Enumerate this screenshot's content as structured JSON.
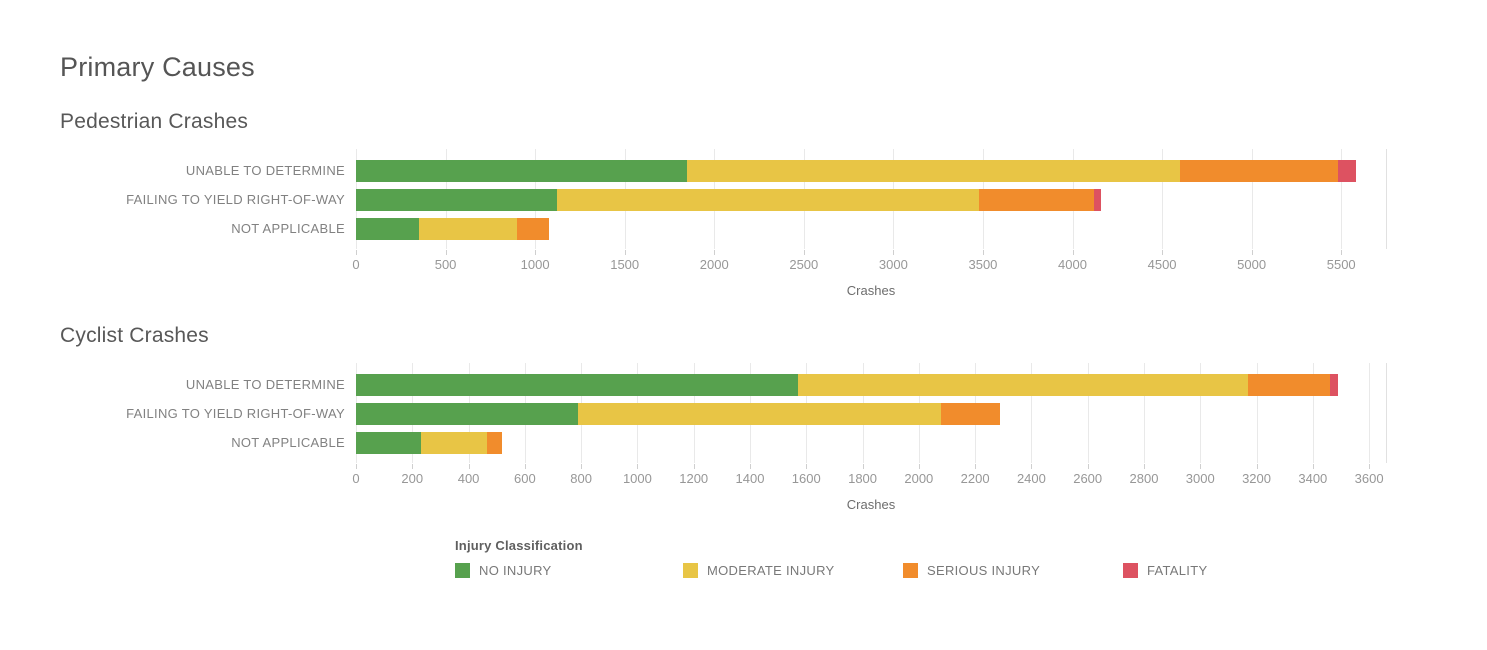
{
  "page": {
    "title": "Primary Causes"
  },
  "colors": {
    "no_injury": "#57A14E",
    "moderate_injury": "#E8C545",
    "serious_injury": "#F18C2C",
    "fatality": "#DD5261",
    "gridline": "#E9E9E9"
  },
  "legend": {
    "title": "Injury Classification",
    "items": [
      {
        "label": "NO INJURY",
        "color": "#57A14E"
      },
      {
        "label": "MODERATE INJURY",
        "color": "#E8C545"
      },
      {
        "label": "SERIOUS INJURY",
        "color": "#F18C2C"
      },
      {
        "label": "FATALITY",
        "color": "#DD5261"
      }
    ]
  },
  "chart_data": [
    {
      "type": "bar",
      "orientation": "horizontal",
      "stacked": true,
      "title": "Pedestrian Crashes",
      "xlabel": "Crashes",
      "categories": [
        "UNABLE TO DETERMINE",
        "FAILING TO YIELD RIGHT-OF-WAY",
        "NOT APPLICABLE"
      ],
      "series": [
        {
          "name": "NO INJURY",
          "color": "#57A14E",
          "values": [
            1850,
            1120,
            350
          ]
        },
        {
          "name": "MODERATE INJURY",
          "color": "#E8C545",
          "values": [
            2750,
            2360,
            550
          ]
        },
        {
          "name": "SERIOUS INJURY",
          "color": "#F18C2C",
          "values": [
            880,
            640,
            180
          ]
        },
        {
          "name": "FATALITY",
          "color": "#DD5261",
          "values": [
            100,
            40,
            0
          ]
        }
      ],
      "ticks": [
        0,
        500,
        1000,
        1500,
        2000,
        2500,
        3000,
        3500,
        4000,
        4500,
        5000,
        5500
      ],
      "xlim": [
        0,
        5750
      ],
      "grid": true,
      "legend_position": "bottom"
    },
    {
      "type": "bar",
      "orientation": "horizontal",
      "stacked": true,
      "title": "Cyclist Crashes",
      "xlabel": "Crashes",
      "categories": [
        "UNABLE TO DETERMINE",
        "FAILING TO YIELD RIGHT-OF-WAY",
        "NOT APPLICABLE"
      ],
      "series": [
        {
          "name": "NO INJURY",
          "color": "#57A14E",
          "values": [
            1570,
            790,
            230
          ]
        },
        {
          "name": "MODERATE INJURY",
          "color": "#E8C545",
          "values": [
            1600,
            1290,
            235
          ]
        },
        {
          "name": "SERIOUS INJURY",
          "color": "#F18C2C",
          "values": [
            290,
            210,
            55
          ]
        },
        {
          "name": "FATALITY",
          "color": "#DD5261",
          "values": [
            30,
            0,
            0
          ]
        }
      ],
      "ticks": [
        0,
        200,
        400,
        600,
        800,
        1000,
        1200,
        1400,
        1600,
        1800,
        2000,
        2200,
        2400,
        2600,
        2800,
        3000,
        3200,
        3400,
        3600
      ],
      "xlim": [
        0,
        3660
      ],
      "grid": true,
      "legend_position": "bottom"
    }
  ]
}
